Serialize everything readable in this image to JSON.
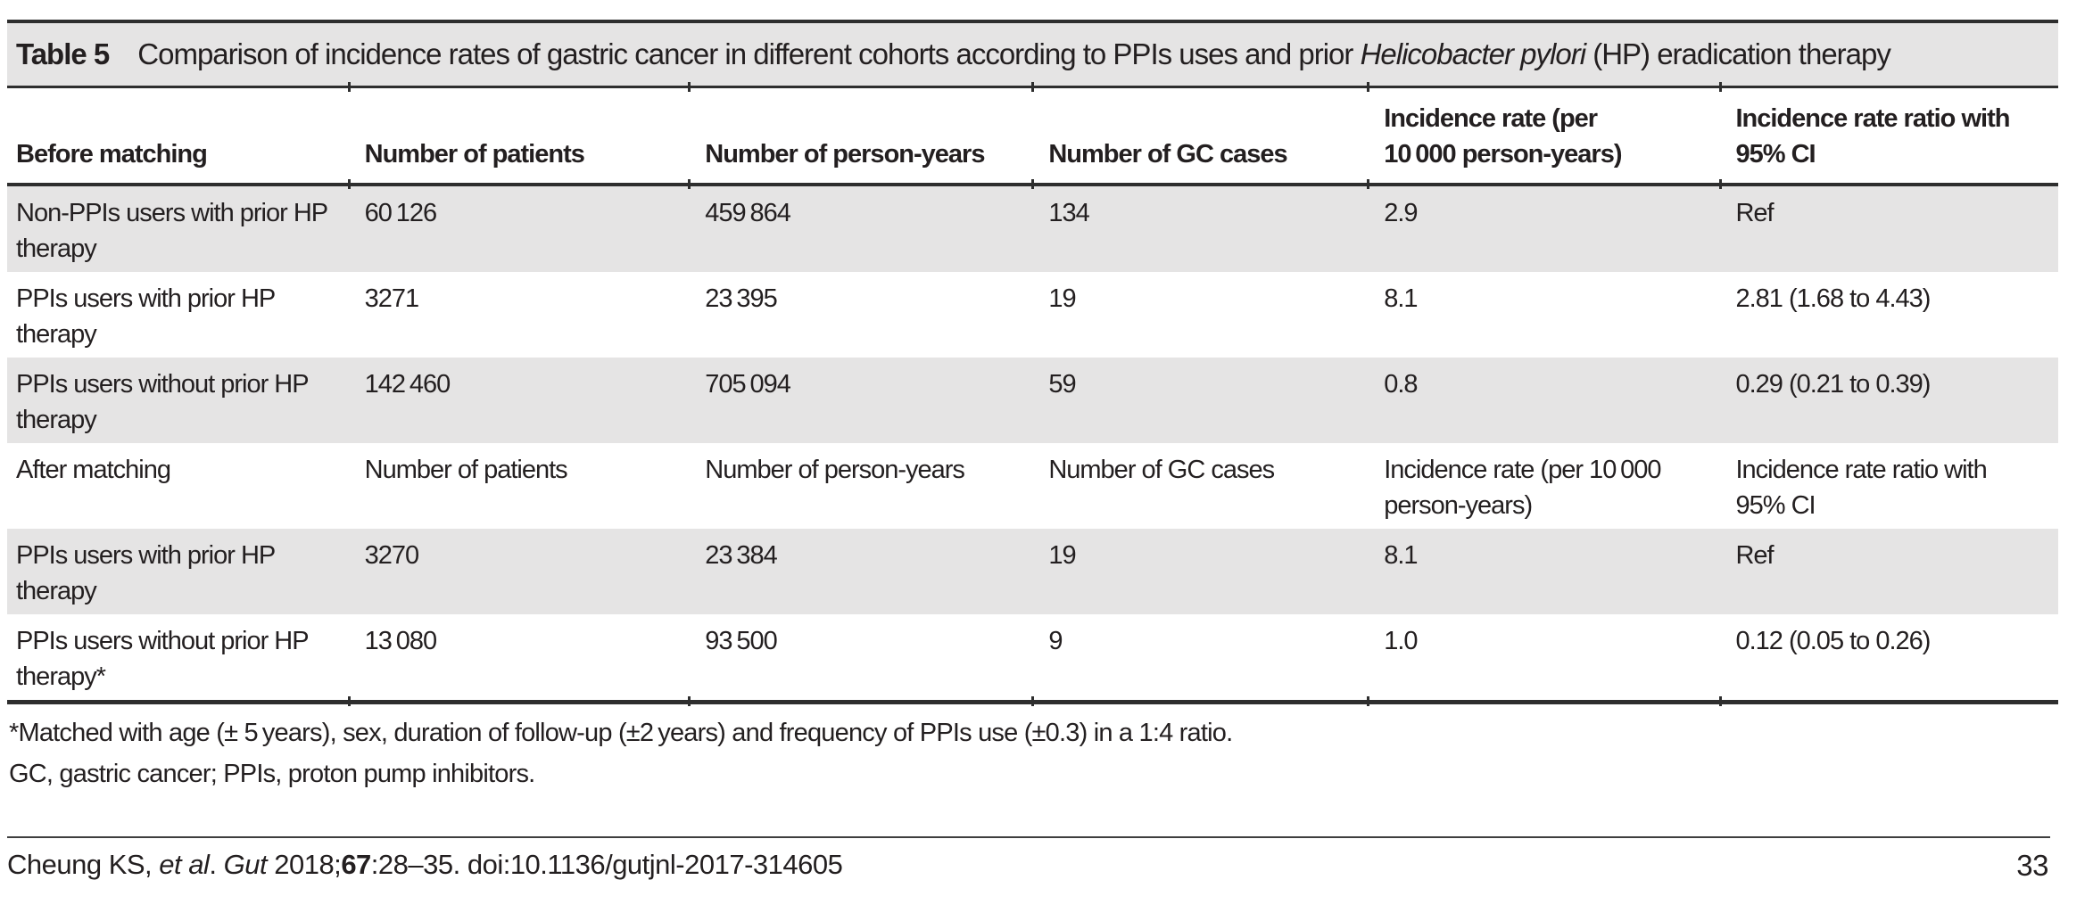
{
  "title": {
    "label": "Table 5",
    "text": "Comparison of incidence rates of gastric cancer in different cohorts according to PPIs uses and prior ",
    "italic": "Helicobacter pylori",
    "text2": " (HP) eradication therapy"
  },
  "columns": {
    "before_matching": "Before matching",
    "patients": "Number of patients",
    "person_years": "Number of person-years",
    "gc_cases": "Number of GC cases",
    "incidence_rate": "Incidence rate (per\n10 000 person-years)",
    "irr": "Incidence rate ratio with\n95% CI"
  },
  "rows": [
    {
      "label": "Non-PPIs users with prior HP\ntherapy",
      "patients": "60 126",
      "person_years": "459 864",
      "gc_cases": "134",
      "rate": "2.9",
      "irr": "Ref"
    },
    {
      "label": "PPIs users with prior HP\ntherapy",
      "patients": "3271",
      "person_years": "23 395",
      "gc_cases": "19",
      "rate": "8.1",
      "irr": "2.81 (1.68 to 4.43)"
    },
    {
      "label": "PPIs users without prior HP\ntherapy",
      "patients": "142 460",
      "person_years": "705 094",
      "gc_cases": "59",
      "rate": "0.8",
      "irr": "0.29 (0.21 to 0.39)"
    },
    {
      "label": "After matching",
      "patients": "Number of patients",
      "person_years": "Number of person-years",
      "gc_cases": "Number of GC cases",
      "rate": "Incidence rate (per 10 000\nperson-years)",
      "irr": "Incidence rate ratio with\n95% CI"
    },
    {
      "label": "PPIs users with prior HP\ntherapy",
      "patients": "3270",
      "person_years": "23 384",
      "gc_cases": "19",
      "rate": "8.1",
      "irr": "Ref"
    },
    {
      "label": "PPIs users without prior HP\ntherapy*",
      "patients": "13 080",
      "person_years": "93 500",
      "gc_cases": "9",
      "rate": "1.0",
      "irr": "0.12 (0.05 to 0.26)"
    }
  ],
  "footnotes": [
    "*Matched with age (± 5 years), sex, duration of follow-up (±2 years) and frequency of PPIs use (±0.3) in a 1:4 ratio.",
    "GC, gastric cancer; PPIs, proton pump inhibitors."
  ],
  "footer": {
    "citation": {
      "authors": "Cheung KS, ",
      "etal": "et al",
      "sep": ". ",
      "journal": "Gut",
      "year": " 2018;",
      "volume": "67",
      "rest": ":28–35. doi:10.1136/gutjnl-2017-314605"
    },
    "page_number": "33"
  },
  "colors": {
    "shaded_row": "#e5e4e4",
    "rule": "#2e2e2e",
    "text": "#231f20"
  }
}
